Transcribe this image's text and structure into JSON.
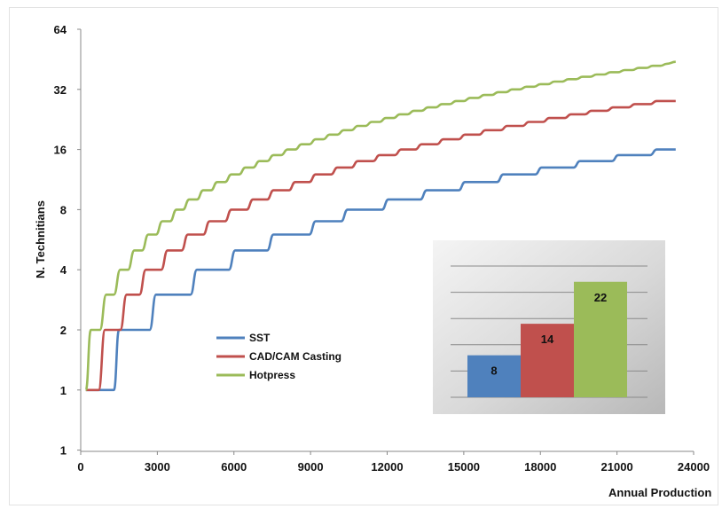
{
  "chart_data": [
    {
      "type": "line",
      "title": "",
      "xlabel": "Annual Production",
      "ylabel": "N. Technitians",
      "x_ticks": [
        "0",
        "3000",
        "6000",
        "9000",
        "12000",
        "15000",
        "18000",
        "21000",
        "24000"
      ],
      "y_ticks": [
        "1",
        "1",
        "2",
        "4",
        "8",
        "16",
        "32",
        "64"
      ],
      "xlim": [
        0,
        24000
      ],
      "y_scale": "log2",
      "grid": false,
      "legend_position": "center-left",
      "series": [
        {
          "name": "SST",
          "color": "#4f81bd",
          "points": [
            [
              200,
              1
            ],
            [
              1300,
              1
            ],
            [
              1500,
              2
            ],
            [
              2700,
              2
            ],
            [
              2950,
              3
            ],
            [
              4300,
              3
            ],
            [
              4550,
              4
            ],
            [
              5800,
              4
            ],
            [
              6050,
              5
            ],
            [
              7300,
              5
            ],
            [
              7550,
              6
            ],
            [
              8950,
              6
            ],
            [
              9200,
              7
            ],
            [
              10200,
              7
            ],
            [
              10450,
              8
            ],
            [
              11800,
              8
            ],
            [
              12050,
              9
            ],
            [
              13300,
              9
            ],
            [
              13550,
              10
            ],
            [
              14800,
              10
            ],
            [
              15050,
              11
            ],
            [
              16300,
              11
            ],
            [
              16550,
              12
            ],
            [
              17800,
              12
            ],
            [
              18050,
              13
            ],
            [
              19300,
              13
            ],
            [
              19550,
              14
            ],
            [
              20800,
              14
            ],
            [
              21050,
              15
            ],
            [
              22300,
              15
            ],
            [
              22550,
              16
            ],
            [
              23300,
              16
            ]
          ]
        },
        {
          "name": "CAD/CAM Casting",
          "color": "#c0504d",
          "points": [
            [
              200,
              1
            ],
            [
              700,
              1
            ],
            [
              950,
              2
            ],
            [
              1550,
              2
            ],
            [
              1800,
              3
            ],
            [
              2300,
              3
            ],
            [
              2550,
              4
            ],
            [
              3150,
              4
            ],
            [
              3400,
              5
            ],
            [
              3950,
              5
            ],
            [
              4200,
              6
            ],
            [
              4800,
              6
            ],
            [
              5050,
              7
            ],
            [
              5650,
              7
            ],
            [
              5900,
              8
            ],
            [
              6500,
              8
            ],
            [
              6750,
              9
            ],
            [
              7300,
              9
            ],
            [
              7550,
              10
            ],
            [
              8150,
              10
            ],
            [
              8400,
              11
            ],
            [
              8950,
              11
            ],
            [
              9200,
              12
            ],
            [
              9800,
              12
            ],
            [
              10050,
              13
            ],
            [
              10600,
              13
            ],
            [
              10850,
              14
            ],
            [
              11450,
              14
            ],
            [
              11700,
              15
            ],
            [
              12300,
              15
            ],
            [
              12550,
              16
            ],
            [
              13100,
              16
            ],
            [
              13350,
              17
            ],
            [
              13950,
              17
            ],
            [
              14200,
              18
            ],
            [
              14800,
              18
            ],
            [
              15050,
              19
            ],
            [
              15600,
              19
            ],
            [
              15850,
              20
            ],
            [
              16450,
              20
            ],
            [
              16700,
              21
            ],
            [
              17300,
              21
            ],
            [
              17550,
              22
            ],
            [
              18100,
              22
            ],
            [
              18350,
              23
            ],
            [
              18950,
              23
            ],
            [
              19200,
              24
            ],
            [
              19750,
              24
            ],
            [
              20000,
              25
            ],
            [
              20600,
              25
            ],
            [
              20850,
              26
            ],
            [
              21450,
              26
            ],
            [
              21700,
              27
            ],
            [
              22300,
              27
            ],
            [
              22550,
              28
            ],
            [
              23300,
              28
            ]
          ]
        },
        {
          "name": "Hotpress",
          "color": "#9bbb59",
          "points": [
            [
              200,
              1
            ],
            [
              400,
              2
            ],
            [
              750,
              2
            ],
            [
              1000,
              3
            ],
            [
              1300,
              3
            ],
            [
              1550,
              4
            ],
            [
              1850,
              4
            ],
            [
              2100,
              5
            ],
            [
              2400,
              5
            ],
            [
              2650,
              6
            ],
            [
              2950,
              6
            ],
            [
              3200,
              7
            ],
            [
              3500,
              7
            ],
            [
              3750,
              8
            ],
            [
              4000,
              8
            ],
            [
              4250,
              9
            ],
            [
              4550,
              9
            ],
            [
              4800,
              10
            ],
            [
              5100,
              10
            ],
            [
              5350,
              11
            ],
            [
              5650,
              11
            ],
            [
              5900,
              12
            ],
            [
              6200,
              12
            ],
            [
              6450,
              13
            ],
            [
              6750,
              13
            ],
            [
              7000,
              14
            ],
            [
              7300,
              14
            ],
            [
              7550,
              15
            ],
            [
              7850,
              15
            ],
            [
              8100,
              16
            ],
            [
              8400,
              16
            ],
            [
              8650,
              17
            ],
            [
              8950,
              17
            ],
            [
              9200,
              18
            ],
            [
              9500,
              18
            ],
            [
              9750,
              19
            ],
            [
              10050,
              19
            ],
            [
              10300,
              20
            ],
            [
              10600,
              20
            ],
            [
              10850,
              21
            ],
            [
              11150,
              21
            ],
            [
              11400,
              22
            ],
            [
              11700,
              22
            ],
            [
              11950,
              23
            ],
            [
              12250,
              23
            ],
            [
              12500,
              24
            ],
            [
              12800,
              24
            ],
            [
              13050,
              25
            ],
            [
              13350,
              25
            ],
            [
              13600,
              26
            ],
            [
              13900,
              26
            ],
            [
              14150,
              27
            ],
            [
              14450,
              27
            ],
            [
              14700,
              28
            ],
            [
              15000,
              28
            ],
            [
              15250,
              29
            ],
            [
              15550,
              29
            ],
            [
              15800,
              30
            ],
            [
              16100,
              30
            ],
            [
              16350,
              31
            ],
            [
              16650,
              31
            ],
            [
              16900,
              32
            ],
            [
              17200,
              32
            ],
            [
              17450,
              33
            ],
            [
              17750,
              33
            ],
            [
              18000,
              34
            ],
            [
              18300,
              34
            ],
            [
              18550,
              35
            ],
            [
              18850,
              35
            ],
            [
              19100,
              36
            ],
            [
              19400,
              36
            ],
            [
              19650,
              37
            ],
            [
              19950,
              37
            ],
            [
              20200,
              38
            ],
            [
              20500,
              38
            ],
            [
              20750,
              39
            ],
            [
              21050,
              39
            ],
            [
              21300,
              40
            ],
            [
              21600,
              40
            ],
            [
              21850,
              41
            ],
            [
              22150,
              41
            ],
            [
              22400,
              42
            ],
            [
              22700,
              42
            ],
            [
              22950,
              43
            ],
            [
              23300,
              44
            ]
          ]
        }
      ]
    },
    {
      "type": "bar",
      "categories": [
        "SST",
        "CAD/CAM Casting",
        "Hotpress"
      ],
      "values": [
        8,
        14,
        22
      ],
      "colors": [
        "#4f81bd",
        "#c0504d",
        "#9bbb59"
      ],
      "ylim": [
        0,
        25
      ],
      "grid": true
    }
  ]
}
